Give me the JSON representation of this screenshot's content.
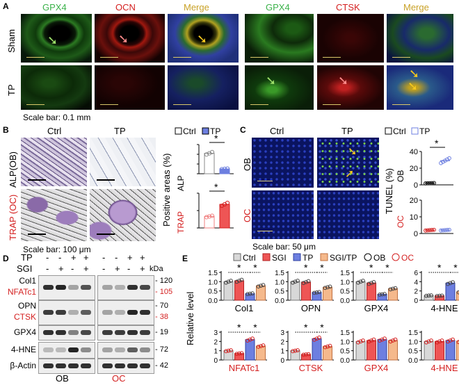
{
  "panels": {
    "A": "A",
    "B": "B",
    "C": "C",
    "D": "D",
    "E": "E"
  },
  "panelA": {
    "left_headers": [
      "GPX4",
      "OCN",
      "Merge"
    ],
    "right_headers": [
      "GPX4",
      "CTSK",
      "Merge"
    ],
    "rows": [
      "Sham",
      "TP"
    ],
    "scale": "Scale bar: 0.1 mm"
  },
  "panelB": {
    "cols": [
      "Ctrl",
      "TP"
    ],
    "rows": [
      "ALP(OB)",
      "TRAP (OC)"
    ],
    "scale": "Scale bar: 100 μm",
    "legend": [
      "Ctrl",
      "TP"
    ],
    "ylabel": "Positive areas (%)",
    "star": "*"
  },
  "panelC": {
    "cols": [
      "Ctrl",
      "TP"
    ],
    "rows": [
      "OB",
      "OC"
    ],
    "scale": "Scale bar: 50 μm",
    "legend": [
      "Ctrl",
      "TP"
    ],
    "ylabel": "TUNEL (%)",
    "star": "*"
  },
  "panelD": {
    "treat_labels": [
      "TP",
      "SGI"
    ],
    "tp_signs": [
      "-",
      "-",
      "+",
      "+"
    ],
    "sgi_signs": [
      "-",
      "+",
      "-",
      "+"
    ],
    "kda": "kDa",
    "proteins_left": [
      "Col1",
      "NFATc1",
      "OPN",
      "CTSK",
      "GPX4",
      "4-HNE",
      "β-Actin"
    ],
    "mw": [
      "120",
      "105",
      "70",
      "38",
      "19",
      "72",
      "42"
    ],
    "groups": [
      "OB",
      "OC"
    ]
  },
  "panelE": {
    "legend": [
      "Ctrl",
      "SGI",
      "TP",
      "SGI/TP",
      "OB",
      "OC"
    ],
    "ylabel": "Relative level",
    "star": "*"
  },
  "colors": {
    "ctrl": "#d8d8d8",
    "sgi": "#ee5555",
    "tp": "#6d7fe0",
    "sgitp": "#f5b98c",
    "red": "#d42020",
    "green": "#7ad04a"
  },
  "chart_data": [
    {
      "type": "bar",
      "title": "",
      "ylabel": "Positive areas (%)",
      "categories": [
        "ALP",
        "TRAP"
      ],
      "series": [
        {
          "name": "Ctrl",
          "values": [
            42,
            33
          ]
        },
        {
          "name": "TP",
          "values": [
            10,
            68
          ]
        }
      ],
      "ylim": [
        [
          0,
          60
        ],
        [
          0,
          100
        ]
      ]
    },
    {
      "type": "bar",
      "ylabel": "TUNEL (%)",
      "categories": [
        "OB",
        "OC"
      ],
      "series": [
        {
          "name": "Ctrl",
          "values": [
            2,
            2
          ]
        },
        {
          "name": "TP",
          "values": [
            29,
            2
          ]
        }
      ],
      "ylim": [
        [
          0,
          40
        ],
        [
          0,
          20
        ]
      ]
    },
    {
      "type": "bar",
      "ylabel": "Relative level",
      "categories": [
        "Col1",
        "OPN",
        "GPX4",
        "4-HNE",
        "NFATc1",
        "CTSK",
        "GPX4",
        "4-HNE"
      ],
      "series": [
        {
          "name": "Ctrl",
          "values": [
            1.0,
            1.0,
            1.0,
            1.0,
            1.0,
            1.0,
            1.0,
            1.0
          ]
        },
        {
          "name": "SGI",
          "values": [
            1.05,
            0.98,
            0.93,
            0.95,
            0.7,
            0.6,
            1.05,
            1.0
          ]
        },
        {
          "name": "TP",
          "values": [
            0.35,
            0.42,
            0.32,
            3.7,
            2.2,
            2.3,
            1.1,
            1.05
          ]
        },
        {
          "name": "SGI/TP",
          "values": [
            0.78,
            0.7,
            0.62,
            1.8,
            1.5,
            1.45,
            1.05,
            1.02
          ]
        }
      ]
    }
  ]
}
